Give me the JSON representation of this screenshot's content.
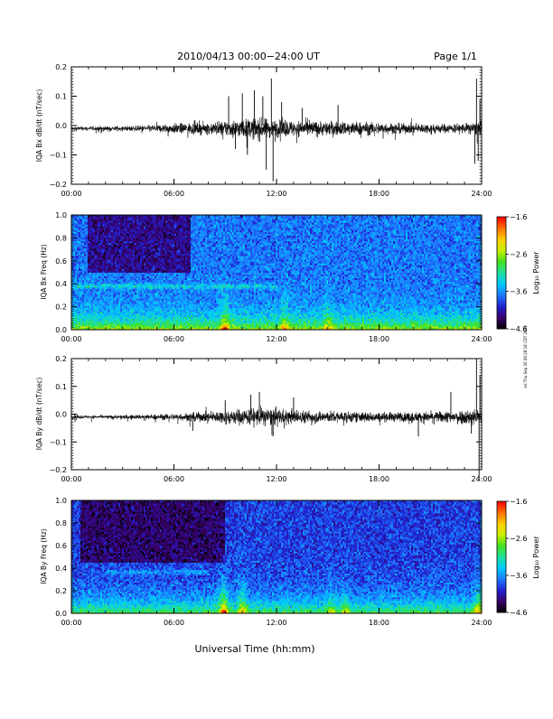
{
  "header": {
    "title": "2010/04/13  00:00−24:00 UT",
    "page": "Page 1/1"
  },
  "footer": {
    "xlabel": "Universal Time (hh:mm)"
  },
  "side_note": "ssl Thu Sep 30 09:28:18 CDT 2010",
  "colorbar": {
    "label": "Log₁₀ Power",
    "ticks": [
      -1.6,
      -2.6,
      -3.6,
      -4.6
    ],
    "tick_labels": [
      "−1.6",
      "−2.6",
      "−3.6",
      "−4.6"
    ],
    "colors": [
      "#000000",
      "#3a0066",
      "#2020d0",
      "#1e78ff",
      "#00c8ff",
      "#20e0a0",
      "#40e020",
      "#c8f000",
      "#ffd000",
      "#ff7000",
      "#ff0000"
    ]
  },
  "chart_data": [
    {
      "type": "line",
      "name": "bx_dbdt",
      "ylabel": "IQA Bx dB/dt (nT/sec)",
      "ylim": [
        -0.2,
        0.2
      ],
      "yticks": [
        -0.2,
        -0.1,
        0.0,
        0.1,
        0.2
      ],
      "ytick_labels": [
        "−0.2",
        "−0.1",
        "0.0",
        "0.1",
        "0.2"
      ],
      "xlim": [
        0,
        24
      ],
      "xticks": [
        0,
        6,
        12,
        18,
        24
      ],
      "xtick_labels": [
        "00:00",
        "06:00",
        "12:00",
        "18:00",
        "24:00"
      ],
      "envelope": {
        "t": [
          0,
          1,
          2,
          3,
          4,
          5,
          6,
          7,
          8,
          9,
          10,
          11,
          12,
          13,
          14,
          15,
          16,
          17,
          18,
          19,
          20,
          21,
          22,
          23,
          24
        ],
        "amp": [
          0.012,
          0.012,
          0.013,
          0.014,
          0.016,
          0.022,
          0.028,
          0.032,
          0.035,
          0.045,
          0.055,
          0.06,
          0.05,
          0.045,
          0.045,
          0.042,
          0.04,
          0.038,
          0.035,
          0.03,
          0.028,
          0.028,
          0.027,
          0.03,
          0.04
        ]
      },
      "spikes": [
        {
          "t": 9.2,
          "y": 0.1
        },
        {
          "t": 9.6,
          "y": -0.08
        },
        {
          "t": 10.0,
          "y": 0.11
        },
        {
          "t": 10.3,
          "y": -0.1
        },
        {
          "t": 10.7,
          "y": 0.12
        },
        {
          "t": 11.2,
          "y": 0.1
        },
        {
          "t": 11.4,
          "y": -0.15
        },
        {
          "t": 11.7,
          "y": 0.16
        },
        {
          "t": 11.8,
          "y": -0.19
        },
        {
          "t": 12.3,
          "y": 0.08
        },
        {
          "t": 13.5,
          "y": 0.06
        },
        {
          "t": 15.6,
          "y": 0.07
        },
        {
          "t": 23.6,
          "y": -0.13
        },
        {
          "t": 23.7,
          "y": 0.16
        },
        {
          "t": 23.8,
          "y": -0.12
        },
        {
          "t": 23.9,
          "y": 0.09
        }
      ]
    },
    {
      "type": "heatmap",
      "name": "bx_spectrogram",
      "ylabel": "IQA Bx Freq (Hz)",
      "ylim": [
        0.0,
        1.0
      ],
      "yticks": [
        0.0,
        0.2,
        0.4,
        0.6,
        0.8,
        1.0
      ],
      "ytick_labels": [
        "0.0",
        "0.2",
        "0.4",
        "0.6",
        "0.8",
        "1.0"
      ],
      "xlim": [
        0,
        24
      ],
      "xticks": [
        0,
        6,
        12,
        18,
        24
      ],
      "xtick_labels": [
        "00:00",
        "06:00",
        "12:00",
        "18:00",
        "24:00"
      ],
      "zlim": [
        -4.6,
        -1.6
      ],
      "background_log_power": -3.7,
      "low_freq_hz": 0.1,
      "low_freq_boost_log_power": 1.2,
      "band": {
        "freq_hz": 0.38,
        "t_start": 0,
        "t_end": 12,
        "boost_log_power": 0.4
      },
      "bursts": [
        {
          "t": 9.0,
          "boost_log_power": 1.0
        },
        {
          "t": 12.5,
          "boost_log_power": 0.6
        },
        {
          "t": 15.0,
          "boost_log_power": 0.6
        }
      ],
      "quiet_regions": [
        {
          "t_start": 1,
          "t_end": 7,
          "freq_min_hz": 0.5,
          "freq_max_hz": 1.0,
          "log_power": -4.2
        }
      ]
    },
    {
      "type": "line",
      "name": "by_dbdt",
      "ylabel": "IQA By dB/dt (nT/sec)",
      "ylim": [
        -0.2,
        0.2
      ],
      "yticks": [
        -0.2,
        -0.1,
        0.0,
        0.1,
        0.2
      ],
      "ytick_labels": [
        "−0.2",
        "−0.1",
        "0.0",
        "0.1",
        "0.2"
      ],
      "xlim": [
        0,
        24
      ],
      "xticks": [
        0,
        6,
        12,
        18,
        24
      ],
      "xtick_labels": [
        "00:00",
        "06:00",
        "12:00",
        "18:00",
        "24:00"
      ],
      "envelope": {
        "t": [
          0,
          1,
          2,
          3,
          4,
          5,
          6,
          7,
          8,
          9,
          10,
          11,
          12,
          13,
          14,
          15,
          16,
          17,
          18,
          19,
          20,
          21,
          22,
          23,
          24
        ],
        "amp": [
          0.012,
          0.01,
          0.01,
          0.012,
          0.014,
          0.016,
          0.02,
          0.026,
          0.03,
          0.04,
          0.05,
          0.055,
          0.05,
          0.04,
          0.038,
          0.036,
          0.034,
          0.03,
          0.028,
          0.028,
          0.03,
          0.032,
          0.035,
          0.045,
          0.05
        ]
      },
      "spikes": [
        {
          "t": 7.1,
          "y": -0.06
        },
        {
          "t": 9.0,
          "y": 0.05
        },
        {
          "t": 10.5,
          "y": 0.07
        },
        {
          "t": 11.0,
          "y": 0.08
        },
        {
          "t": 11.8,
          "y": -0.08
        },
        {
          "t": 13.0,
          "y": 0.06
        },
        {
          "t": 20.3,
          "y": -0.08
        },
        {
          "t": 22.2,
          "y": 0.08
        },
        {
          "t": 23.4,
          "y": -0.07
        },
        {
          "t": 23.7,
          "y": 0.2
        },
        {
          "t": 23.85,
          "y": -0.24
        },
        {
          "t": 23.9,
          "y": 0.14
        }
      ]
    },
    {
      "type": "heatmap",
      "name": "by_spectrogram",
      "ylabel": "IQA By Freq (Hz)",
      "ylim": [
        0.0,
        1.0
      ],
      "yticks": [
        0.0,
        0.2,
        0.4,
        0.6,
        0.8,
        1.0
      ],
      "ytick_labels": [
        "0.0",
        "0.2",
        "0.4",
        "0.6",
        "0.8",
        "1.0"
      ],
      "xlim": [
        0,
        24
      ],
      "xticks": [
        0,
        6,
        12,
        18,
        24
      ],
      "xtick_labels": [
        "00:00",
        "06:00",
        "12:00",
        "18:00",
        "24:00"
      ],
      "zlim": [
        -4.6,
        -1.6
      ],
      "background_log_power": -3.9,
      "low_freq_hz": 0.12,
      "low_freq_boost_log_power": 1.1,
      "band": {
        "freq_hz": 0.37,
        "t_start": 2,
        "t_end": 8,
        "boost_log_power": 0.3
      },
      "bursts": [
        {
          "t": 8.9,
          "boost_log_power": 1.3
        },
        {
          "t": 10.0,
          "boost_log_power": 0.9
        },
        {
          "t": 15.2,
          "boost_log_power": 0.5
        },
        {
          "t": 16.0,
          "boost_log_power": 0.5
        },
        {
          "t": 23.8,
          "boost_log_power": 0.9
        }
      ],
      "quiet_regions": [
        {
          "t_start": 0.5,
          "t_end": 9,
          "freq_min_hz": 0.45,
          "freq_max_hz": 1.0,
          "log_power": -4.3
        }
      ]
    }
  ]
}
